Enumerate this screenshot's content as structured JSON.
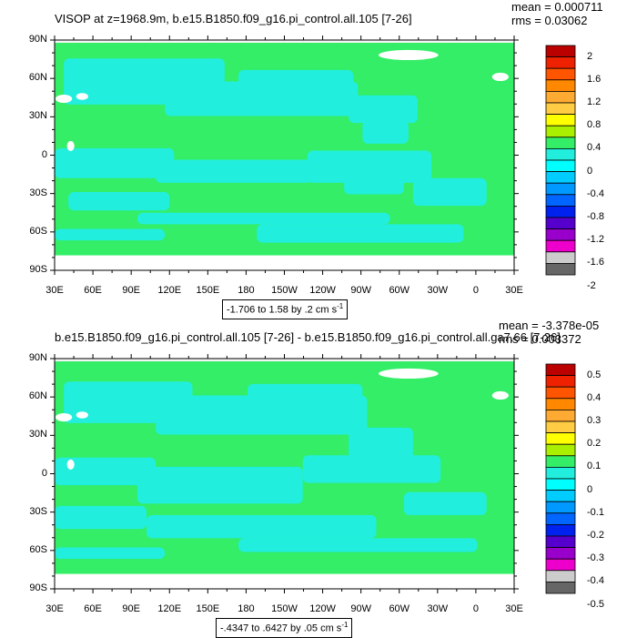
{
  "panels": [
    {
      "title": "VISOP at z=1968.9m, b.e15.B1850.f09_g16.pi_control.all.105 [7-26]",
      "mean": "mean = 0.000711",
      "rms": "rms = 0.03062",
      "range_text": "-1.706 to 1.58 by .2 cm s",
      "range_sup": "-1",
      "colorbar_labels": [
        "2",
        "1.6",
        "1.2",
        "0.8",
        "0.4",
        "0",
        "-0.4",
        "-0.8",
        "-1.2",
        "-1.6",
        "-2"
      ]
    },
    {
      "title": "b.e15.B1850.f09_g16.pi_control.all.105 [7-26] - b.e15.B1850.f09_g16.pi_control.all.ga7.66 [7-26]",
      "mean": "mean = -3.378e-05",
      "rms": "rms = 0.003372",
      "range_text": "-.4347 to .6427 by .05 cm s",
      "range_sup": "-1",
      "colorbar_labels": [
        "0.5",
        "0.4",
        "0.3",
        "0.2",
        "0.1",
        "0",
        "-0.1",
        "-0.2",
        "-0.3",
        "-0.4",
        "-0.5"
      ]
    }
  ],
  "lat_labels": [
    "90N",
    "60N",
    "30N",
    "0",
    "30S",
    "60S",
    "90S"
  ],
  "lon_labels": [
    "30E",
    "60E",
    "90E",
    "120E",
    "150E",
    "180",
    "150W",
    "120W",
    "90W",
    "60W",
    "30W",
    "0",
    "30E"
  ],
  "colors": {
    "field_green": "#33ee66",
    "field_cyan": "#22eedd",
    "land_white": "#ffffff",
    "colorbar": [
      "#bb0000",
      "#ee2200",
      "#ff5500",
      "#ff8800",
      "#ffaa33",
      "#ffcc44",
      "#ffff00",
      "#aaee00",
      "#33ee66",
      "#22eedd",
      "#00ffff",
      "#00ccff",
      "#0099ff",
      "#0066ff",
      "#0022ee",
      "#5500cc",
      "#9900cc",
      "#ee00cc",
      "#cccccc",
      "#666666"
    ]
  }
}
